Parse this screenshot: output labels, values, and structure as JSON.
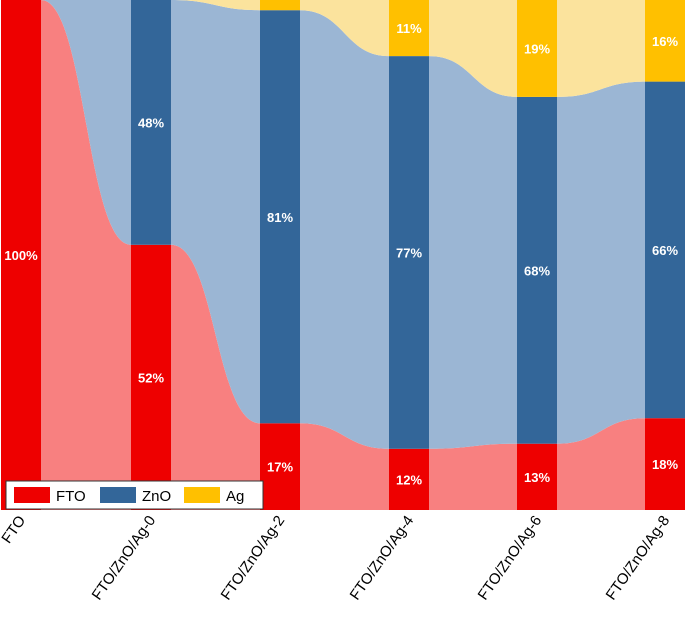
{
  "chart_data": {
    "type": "bar",
    "stacked": true,
    "percent": true,
    "style": "alluvial",
    "title": "",
    "xlabel": "",
    "ylabel": "",
    "ylim": [
      0,
      100
    ],
    "categories": [
      "FTO",
      "FTO/ZnO/Ag-0",
      "FTO/ZnO/Ag-2",
      "FTO/ZnO/Ag-4",
      "FTO/ZnO/Ag-6",
      "FTO/ZnO/Ag-8"
    ],
    "series": [
      {
        "name": "FTO",
        "values": [
          100,
          52,
          17,
          12,
          13,
          18
        ],
        "labels": [
          "100%",
          "52%",
          "17%",
          "12%",
          "13%",
          "18%"
        ]
      },
      {
        "name": "ZnO",
        "values": [
          0,
          48,
          81,
          77,
          68,
          66
        ],
        "labels": [
          "",
          "48%",
          "81%",
          "77%",
          "68%",
          "66%"
        ]
      },
      {
        "name": "Ag",
        "values": [
          0,
          0,
          2,
          11,
          19,
          16
        ],
        "labels": [
          "",
          "",
          "",
          "11%",
          "19%",
          "16%"
        ]
      }
    ],
    "legend": {
      "position": "bottom-left",
      "entries": [
        "FTO",
        "ZnO",
        "Ag"
      ]
    }
  },
  "colors": {
    "FTO": "#ee0000",
    "ZnO": "#336699",
    "Ag": "#ffc000",
    "FTO_flow": "#f88080",
    "ZnO_flow": "#9bb6d4",
    "Ag_flow": "#fbe39d"
  }
}
